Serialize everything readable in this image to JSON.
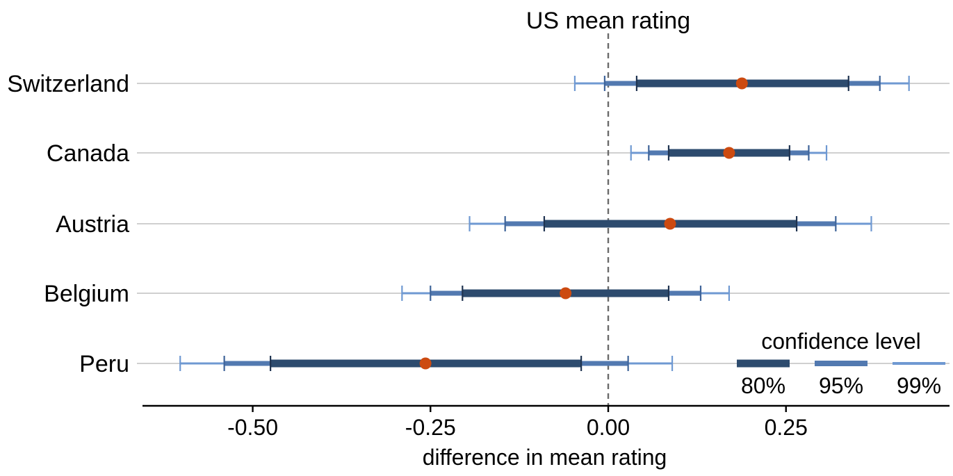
{
  "chart_data": {
    "type": "interval",
    "xlabel": "difference in mean rating",
    "ylabel": "",
    "xlim": [
      -0.655,
      0.48
    ],
    "x_ticks": [
      -0.5,
      -0.25,
      0.0,
      0.25
    ],
    "x_tick_labels": [
      "-0.50",
      "-0.25",
      "0.00",
      "0.25"
    ],
    "reference_line": {
      "x": 0.0,
      "label": "US mean rating",
      "style": "dashed"
    },
    "grid": "horizontal",
    "categories": [
      "Switzerland",
      "Canada",
      "Austria",
      "Belgium",
      "Peru"
    ],
    "estimates": [
      0.188,
      0.17,
      0.087,
      -0.06,
      -0.257
    ],
    "intervals": {
      "80%": [
        [
          0.04,
          0.338
        ],
        [
          0.085,
          0.255
        ],
        [
          -0.09,
          0.265
        ],
        [
          -0.205,
          0.085
        ],
        [
          -0.475,
          -0.038
        ]
      ],
      "95%": [
        [
          -0.005,
          0.382
        ],
        [
          0.057,
          0.282
        ],
        [
          -0.145,
          0.32
        ],
        [
          -0.25,
          0.13
        ],
        [
          -0.54,
          0.028
        ]
      ],
      "99%": [
        [
          -0.047,
          0.423
        ],
        [
          0.032,
          0.307
        ],
        [
          -0.195,
          0.37
        ],
        [
          -0.29,
          0.17
        ],
        [
          -0.602,
          0.09
        ]
      ]
    },
    "legend": {
      "title": "confidence level",
      "placement": "bottom-right",
      "entries": [
        "80%",
        "95%",
        "99%"
      ]
    },
    "colors": {
      "80%": "#2d4b6e",
      "95%": "#5279b0",
      "99%": "#6f99d2",
      "estimate": "#cc4a10",
      "grid": "#d0d0d0",
      "reference": "#6a6a6a"
    }
  }
}
